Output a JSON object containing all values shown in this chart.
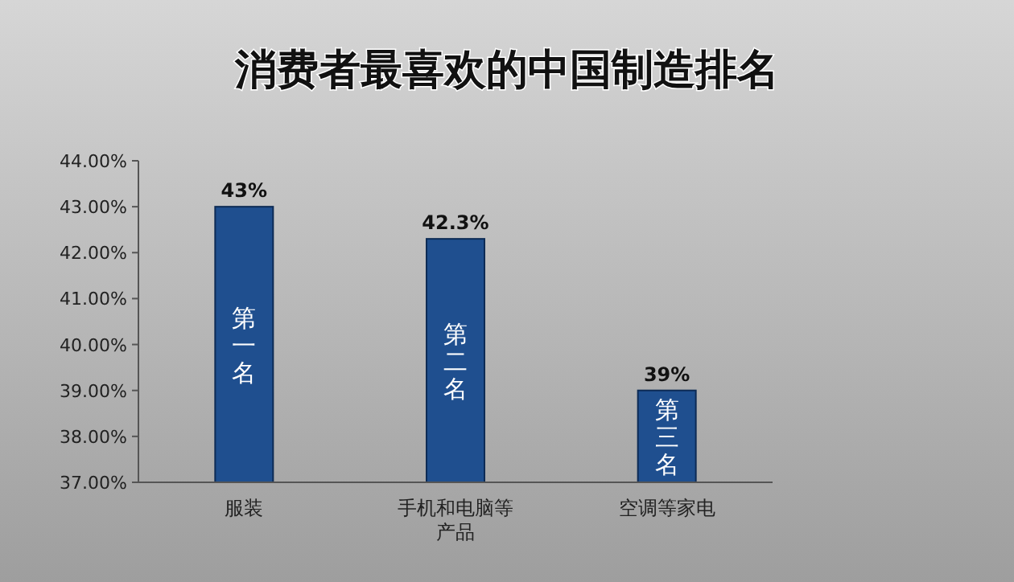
{
  "chart_data": {
    "type": "bar",
    "title": "消费者最喜欢的中国制造排名",
    "categories": [
      "服装",
      "手机和电脑等产品",
      "空调等家电"
    ],
    "values": [
      43,
      42.3,
      39
    ],
    "value_labels": [
      "43%",
      "42.3%",
      "39%"
    ],
    "color": "#1f4f8f",
    "ylim": [
      37,
      44
    ],
    "yticks": [
      {
        "value": 37,
        "label": "37.00%"
      },
      {
        "value": 38,
        "label": "38.00%"
      },
      {
        "value": 39,
        "label": "39.00%"
      },
      {
        "value": 40,
        "label": "40.00%"
      },
      {
        "value": 41,
        "label": "41.00%"
      },
      {
        "value": 42,
        "label": "42.00%"
      },
      {
        "value": 43,
        "label": "43.00%"
      },
      {
        "value": 44,
        "label": "44.00%"
      }
    ],
    "annotations": [
      "第一名",
      "第二名",
      "第三名"
    ],
    "grid": false
  }
}
